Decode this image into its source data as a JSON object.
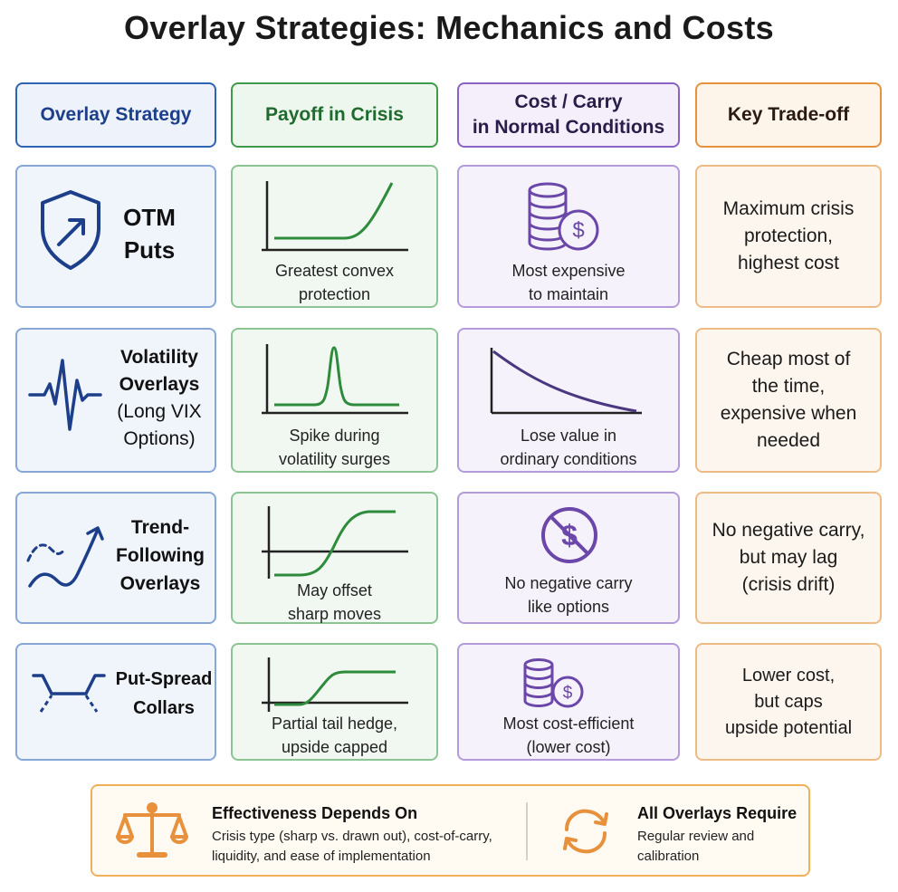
{
  "title": "Overlay Strategies: Mechanics and Costs",
  "headers": {
    "strategy": "Overlay Strategy",
    "payoff": "Payoff in Crisis",
    "cost_line1": "Cost / Carry",
    "cost_line2": "in Normal Conditions",
    "tradeoff": "Key Trade-off"
  },
  "rows": [
    {
      "name_lines": [
        "OTM",
        "Puts"
      ],
      "strategy_icon": "shield-arrow-icon",
      "payoff_lines": [
        "Greatest convex",
        "protection"
      ],
      "cost_icon": "coin-stack-dollar-icon",
      "cost_lines": [
        "Most expensive",
        "to maintain"
      ],
      "tradeoff_lines": [
        "Maximum crisis",
        "protection,",
        "highest cost"
      ]
    },
    {
      "name_lines": [
        "Volatility",
        "Overlays",
        "(Long VIX",
        "Options)"
      ],
      "strategy_icon": "pulse-wave-icon",
      "payoff_lines": [
        "Spike during",
        "volatility surges"
      ],
      "cost_icon": "decay-curve-icon",
      "cost_lines": [
        "Lose value in",
        "ordinary conditions"
      ],
      "tradeoff_lines": [
        "Cheap most of",
        "the time,",
        "expensive when",
        "needed"
      ]
    },
    {
      "name_lines": [
        "Trend-",
        "Following",
        "Overlays"
      ],
      "strategy_icon": "trend-arrow-icon",
      "payoff_lines": [
        "May offset",
        "sharp moves"
      ],
      "cost_icon": "no-dollar-icon",
      "cost_lines": [
        "No negative carry",
        "like options"
      ],
      "tradeoff_lines": [
        "No negative carry,",
        "but may lag",
        "(crisis drift)"
      ]
    },
    {
      "name_lines": [
        "Put-Spread",
        "Collars"
      ],
      "strategy_icon": "collar-shape-icon",
      "payoff_lines": [
        "Partial tail hedge,",
        "upside capped"
      ],
      "cost_icon": "small-coin-stack-icon",
      "cost_lines": [
        "Most cost-efficient",
        "(lower cost)"
      ],
      "tradeoff_lines": [
        "Lower cost,",
        "but caps",
        "upside potential"
      ]
    }
  ],
  "footer": {
    "left_title": "Effectiveness Depends On",
    "left_text_lines": [
      "Crisis type (sharp vs. drawn out), cost-of-carry,",
      "liquidity, and ease of implementation"
    ],
    "right_title": "All Overlays Require",
    "right_text_lines": [
      "Regular review and",
      "calibration"
    ]
  },
  "colors": {
    "blue": "#2f63b6",
    "green": "#3f9a4b",
    "purple": "#8a63c4",
    "orange": "#e8913c",
    "navy": "#1d3f8a"
  }
}
